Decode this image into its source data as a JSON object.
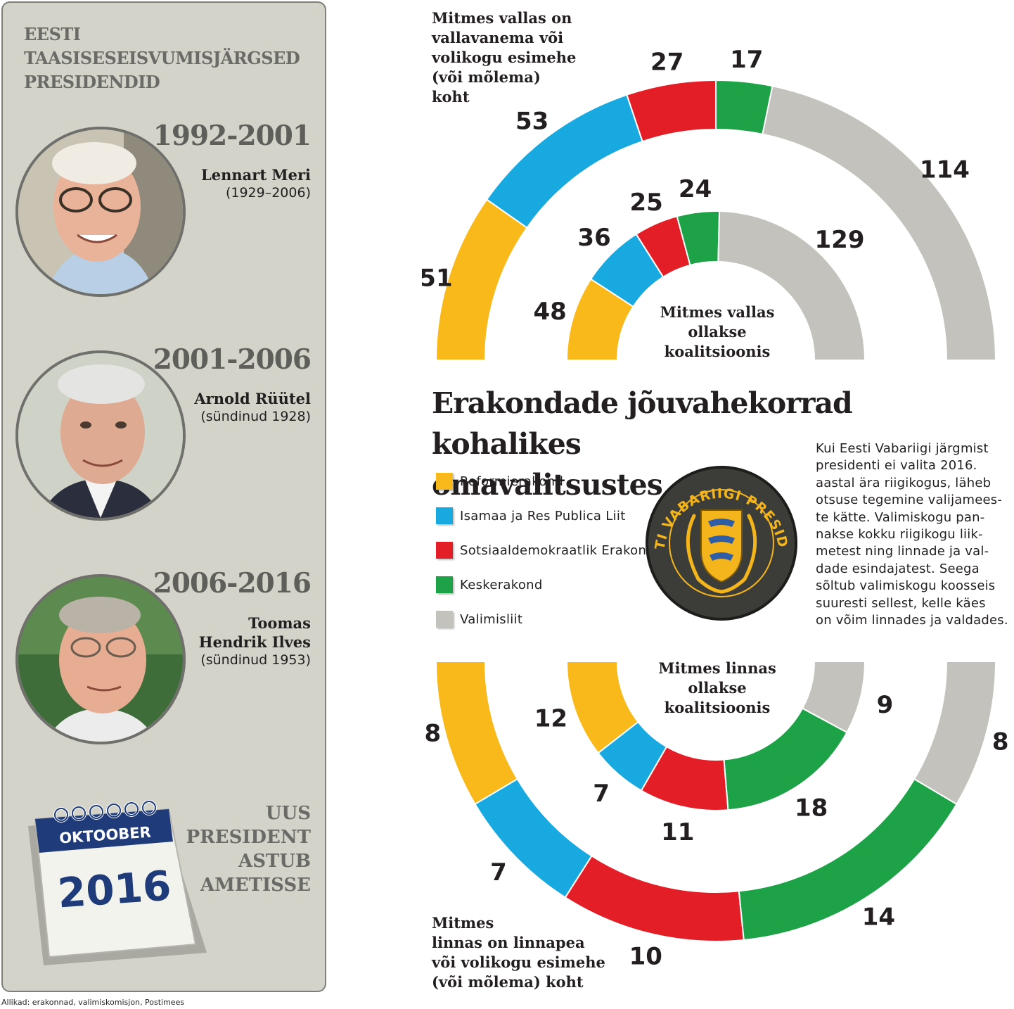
{
  "sidebar": {
    "title_lines": [
      "EESTI",
      "TAASISESEISVUMISJÄRGSED",
      "PRESIDENDID"
    ],
    "presidents": [
      {
        "years": "1992-2001",
        "name_lines": [
          "Lennart Meri"
        ],
        "life": "(1929–2006)"
      },
      {
        "years": "2001-2006",
        "name_lines": [
          "Arnold Rüütel"
        ],
        "life": "(sündinud 1928)"
      },
      {
        "years": "2006-2016",
        "name_lines": [
          "Toomas",
          "Hendrik Ilves"
        ],
        "life": "(sündinud 1953)"
      }
    ],
    "calendar": {
      "month": "OKTOOBER",
      "year": "2016"
    },
    "new_president_lines": [
      "UUS",
      "PRESIDENT",
      "ASTUB",
      "AMETISSE"
    ]
  },
  "source": "Allikad: erakonnad, valimiskomisjon, Postimees",
  "headline_lines": [
    "Erakondade jõuvahekorrad kohalikes",
    "omavalitsustes"
  ],
  "legend": [
    {
      "label": "Reformierakond",
      "color": "#f9b91b"
    },
    {
      "label": "Isamaa ja Res Publica Liit",
      "color": "#19a9e1"
    },
    {
      "label": "Sotsiaaldemokraatlik Erakond",
      "color": "#e41e26"
    },
    {
      "label": "Keskerakond",
      "color": "#1ea247"
    },
    {
      "label": "Valimisliit",
      "color": "#c3c2bc"
    }
  ],
  "seal_text": "EESTI VABARIIGI PRESIDENT",
  "note_lines": [
    "Kui Eesti Vabariigi järgmist",
    "presidenti ei valita 2016.",
    "aastal ära riigikogus, läheb",
    "otsuse tegemine valijamees-",
    "te kätte. Valimiskogu pan-",
    "nakse kokku riigikogu liik-",
    "metest ning linnade ja val-",
    "dade esindajatest. Seega",
    "sõltub valimiskogu koosseis",
    "suuresti sellest, kelle käes",
    "on võim linnades ja valdades."
  ],
  "chart_data": [
    {
      "type": "pie",
      "title_lines": [
        "Mitmes vallas on",
        "vallavanema või",
        "volikogu esimehe",
        "(või mõlema)",
        "koht"
      ],
      "categories": [
        "Reformierakond",
        "Isamaa ja Res Publica Liit",
        "Sotsiaaldemokraatlik Erakond",
        "Keskerakond",
        "Valimisliit"
      ],
      "values": [
        51,
        53,
        27,
        17,
        114
      ]
    },
    {
      "type": "pie",
      "title_lines": [
        "Mitmes vallas",
        "ollakse",
        "koalitsioonis"
      ],
      "categories": [
        "Reformierakond",
        "Isamaa ja Res Publica Liit",
        "Sotsiaaldemokraatlik Erakond",
        "Keskerakond",
        "Valimisliit"
      ],
      "values": [
        48,
        36,
        25,
        24,
        129
      ]
    },
    {
      "type": "pie",
      "title_lines": [
        "Mitmes",
        "linnas on linnapea",
        "või volikogu esimehe",
        "(või mõlema) koht"
      ],
      "categories": [
        "Reformierakond",
        "Isamaa ja Res Publica Liit",
        "Sotsiaaldemokraatlik Erakond",
        "Keskerakond",
        "Valimisliit"
      ],
      "values": [
        8,
        7,
        10,
        14,
        8
      ]
    },
    {
      "type": "pie",
      "title_lines": [
        "Mitmes linnas",
        "ollakse",
        "koalitsioonis"
      ],
      "categories": [
        "Reformierakond",
        "Isamaa ja Res Publica Liit",
        "Sotsiaaldemokraatlik Erakond",
        "Keskerakond",
        "Valimisliit"
      ],
      "values": [
        12,
        7,
        11,
        18,
        9
      ]
    }
  ]
}
